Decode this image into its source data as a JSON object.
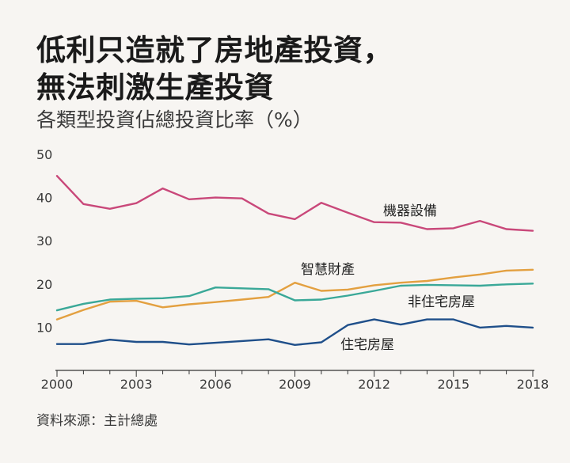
{
  "title_lines": [
    "低利只造就了房地產投資，",
    "無法刺激生產投資"
  ],
  "subtitle": "各類型投資佔總投資比率（%）",
  "source": "資料來源：主計總處",
  "colors": {
    "machinery": "#c9487a",
    "smart_assets": "#e3a040",
    "non_residential": "#3aa898",
    "residential": "#1f4f8a"
  },
  "chart_data": {
    "type": "line",
    "title": "各類型投資佔總投資比率（%）",
    "xlabel": "",
    "ylabel": "",
    "x": [
      2000,
      2001,
      2002,
      2003,
      2004,
      2005,
      2006,
      2007,
      2008,
      2009,
      2010,
      2011,
      2012,
      2013,
      2014,
      2015,
      2016,
      2017,
      2018
    ],
    "xticks": [
      2000,
      2003,
      2006,
      2009,
      2012,
      2015,
      2018
    ],
    "yticks": [
      10,
      20,
      30,
      40,
      50
    ],
    "xlim": [
      2000,
      2018
    ],
    "ylim": [
      0,
      50
    ],
    "grid": false,
    "series": [
      {
        "name": "機器設備",
        "color": "#c9487a",
        "values": [
          45.0,
          38.5,
          37.4,
          38.7,
          42.1,
          39.6,
          40.0,
          39.8,
          36.3,
          35.0,
          38.8,
          36.5,
          34.3,
          34.2,
          32.7,
          32.9,
          34.6,
          32.7,
          32.3
        ]
      },
      {
        "name": "智慧財產",
        "color": "#e3a040",
        "values": [
          11.8,
          14.0,
          15.9,
          16.1,
          14.6,
          15.3,
          15.8,
          16.4,
          17.0,
          20.3,
          18.4,
          18.7,
          19.7,
          20.3,
          20.7,
          21.5,
          22.2,
          23.1,
          23.3
        ]
      },
      {
        "name": "非住宅房屋",
        "color": "#3aa898",
        "values": [
          13.9,
          15.4,
          16.4,
          16.6,
          16.7,
          17.2,
          19.2,
          19.0,
          18.8,
          16.2,
          16.4,
          17.3,
          18.4,
          19.6,
          19.8,
          19.7,
          19.6,
          19.9,
          20.1
        ]
      },
      {
        "name": "住宅房屋",
        "color": "#1f4f8a",
        "values": [
          6.1,
          6.1,
          7.1,
          6.6,
          6.6,
          6.0,
          6.4,
          6.8,
          7.2,
          5.9,
          6.5,
          10.5,
          11.8,
          10.6,
          11.8,
          11.8,
          9.9,
          10.3,
          9.9
        ]
      }
    ]
  }
}
